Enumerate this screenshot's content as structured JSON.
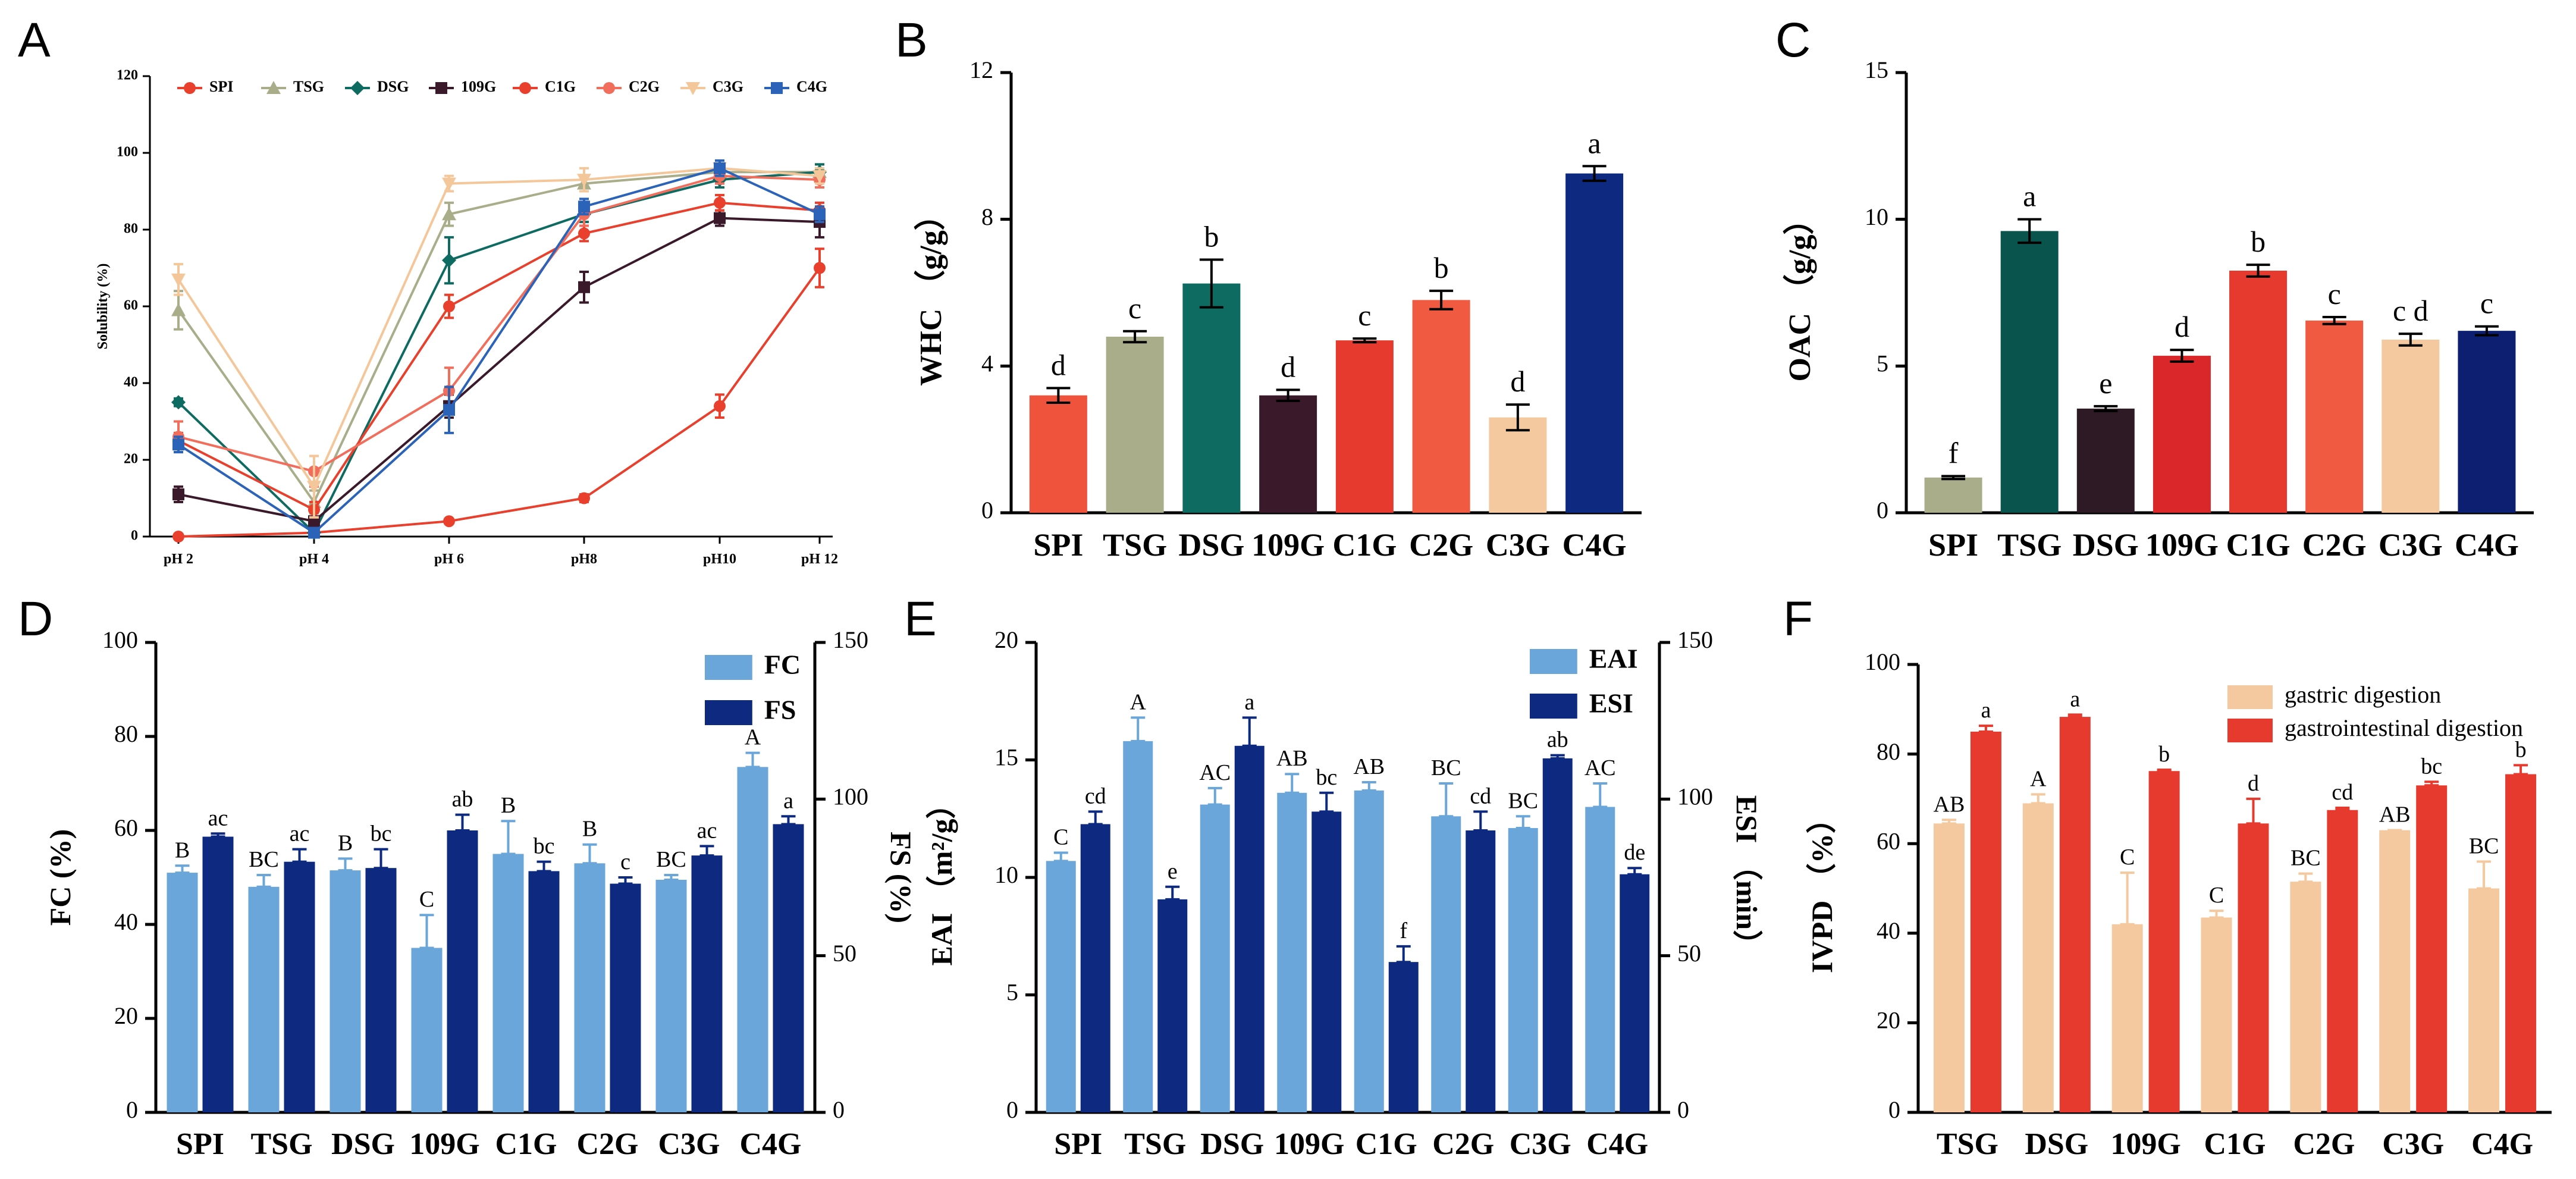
{
  "chart_data": [
    {
      "id": "A",
      "panel_label": "A",
      "type": "line",
      "title": "",
      "xlabel": "",
      "ylabel": "Solubility (%)",
      "categories": [
        "pH 2",
        "pH 4",
        "pH 6",
        "pH8",
        "pH10",
        "pH 12"
      ],
      "ylim": [
        0,
        120
      ],
      "yticks": [
        0,
        20,
        40,
        60,
        80,
        100,
        120
      ],
      "series": [
        {
          "name": "SPI",
          "color": "#e8402c",
          "marker": "circle",
          "values": [
            0,
            1,
            4,
            10,
            34,
            70
          ],
          "errors": [
            0,
            0.5,
            0.5,
            1,
            3,
            5
          ]
        },
        {
          "name": "TSG",
          "color": "#a9ad8a",
          "marker": "triangle",
          "values": [
            59,
            9,
            84,
            92,
            95,
            95
          ],
          "errors": [
            5,
            3,
            3,
            2,
            2,
            2
          ]
        },
        {
          "name": "DSG",
          "color": "#0d6b62",
          "marker": "diamond",
          "values": [
            35,
            1,
            72,
            84,
            93,
            95
          ],
          "errors": [
            1,
            0.5,
            6,
            2,
            2,
            2
          ]
        },
        {
          "name": "109G",
          "color": "#3a1a2a",
          "marker": "square",
          "values": [
            11,
            4,
            34,
            65,
            83,
            82
          ],
          "errors": [
            2,
            1,
            3,
            4,
            2,
            4
          ]
        },
        {
          "name": "C1G",
          "color": "#e8402c",
          "marker": "circle",
          "values": [
            25,
            7,
            60,
            79,
            87,
            85
          ],
          "errors": [
            2,
            2,
            3,
            2,
            2,
            2
          ]
        },
        {
          "name": "C2G",
          "color": "#f26e5c",
          "marker": "circle",
          "values": [
            26,
            17,
            38,
            84,
            94,
            93
          ],
          "errors": [
            4,
            4,
            6,
            3,
            2,
            2
          ]
        },
        {
          "name": "C3G",
          "color": "#f4c79a",
          "marker": "triangle-down",
          "values": [
            67,
            13,
            92,
            93,
            96,
            94
          ],
          "errors": [
            4,
            8,
            2,
            3,
            2,
            2
          ]
        },
        {
          "name": "C4G",
          "color": "#2b63b8",
          "marker": "square",
          "values": [
            24,
            1,
            33,
            86,
            96,
            84
          ],
          "errors": [
            2,
            0.5,
            6,
            2,
            2,
            2
          ]
        }
      ]
    },
    {
      "id": "B",
      "panel_label": "B",
      "type": "bar",
      "xlabel": "",
      "ylabel": "WHC （g/g）",
      "categories": [
        "SPI",
        "TSG",
        "DSG",
        "109G",
        "C1G",
        "C2G",
        "C3G",
        "C4G"
      ],
      "ylim": [
        0,
        12
      ],
      "yticks": [
        0,
        4,
        8,
        12
      ],
      "values": [
        3.2,
        4.8,
        6.25,
        3.2,
        4.7,
        5.8,
        2.6,
        9.25
      ],
      "errors": [
        0.2,
        0.15,
        0.65,
        0.15,
        0.05,
        0.25,
        0.35,
        0.2
      ],
      "letters": [
        "d",
        "c",
        "b",
        "d",
        "c",
        "b",
        "d",
        "a"
      ],
      "colors": [
        "#f0533b",
        "#a9ad8a",
        "#0d6b62",
        "#3a1a2a",
        "#e63a2e",
        "#f05a40",
        "#f4c99f",
        "#0d2a80"
      ]
    },
    {
      "id": "C",
      "panel_label": "C",
      "type": "bar",
      "xlabel": "",
      "ylabel": "OAC （g/g）",
      "categories": [
        "SPI",
        "TSG",
        "DSG",
        "109G",
        "C1G",
        "C2G",
        "C3G",
        "C4G"
      ],
      "ylim": [
        0,
        15
      ],
      "yticks": [
        0,
        5,
        10,
        15
      ],
      "values": [
        1.2,
        9.6,
        3.55,
        5.35,
        8.25,
        6.55,
        5.9,
        6.2
      ],
      "errors": [
        0.05,
        0.4,
        0.08,
        0.2,
        0.2,
        0.12,
        0.2,
        0.15
      ],
      "letters": [
        "f",
        "a",
        "e",
        "d",
        "b",
        "c",
        "c d",
        "c"
      ],
      "colors": [
        "#a9ad8a",
        "#0a544e",
        "#2e1a24",
        "#d9272a",
        "#e63a2e",
        "#f05a40",
        "#f4c99f",
        "#0d1f70"
      ]
    },
    {
      "id": "D",
      "panel_label": "D",
      "type": "bar",
      "categories": [
        "SPI",
        "TSG",
        "DSG",
        "109G",
        "C1G",
        "C2G",
        "C3G",
        "C4G"
      ],
      "ylabel": "FC (%)",
      "ylabel_right": "FS (%)",
      "ylim": [
        0,
        100
      ],
      "yticks": [
        0,
        20,
        40,
        60,
        80,
        100
      ],
      "ylim_right": [
        0,
        150
      ],
      "yticks_right": [
        0,
        50,
        100,
        150
      ],
      "series": [
        {
          "name": "FC",
          "color": "#6aa6d9",
          "axis": "left",
          "values": [
            51,
            48,
            51.5,
            35,
            55,
            53,
            49.5,
            73.5
          ],
          "errors": [
            1.5,
            2.5,
            2.5,
            7,
            7,
            4,
            1,
            3
          ],
          "letters": [
            "B",
            "BC",
            "B",
            "C",
            "B",
            "B",
            "BC",
            "A"
          ]
        },
        {
          "name": "FS",
          "color": "#0d2a80",
          "axis": "right",
          "values": [
            88,
            80,
            78,
            90,
            77,
            73,
            82,
            92
          ],
          "errors": [
            1,
            4,
            6,
            5,
            3,
            2,
            3,
            2.5
          ],
          "letters": [
            "ac",
            "ac",
            "bc",
            "ab",
            "bc",
            "c",
            "ac",
            "a"
          ]
        }
      ],
      "legend_position": "top-right"
    },
    {
      "id": "E",
      "panel_label": "E",
      "type": "bar",
      "categories": [
        "SPI",
        "TSG",
        "DSG",
        "109G",
        "C1G",
        "C2G",
        "C3G",
        "C4G"
      ],
      "ylabel": "EAI （m²/g）",
      "ylabel_right": "ESI （min）",
      "ylim": [
        0,
        20
      ],
      "yticks": [
        0,
        5,
        10,
        15,
        20
      ],
      "ylim_right": [
        0,
        150
      ],
      "yticks_right": [
        0,
        50,
        100,
        150
      ],
      "series": [
        {
          "name": "EAI",
          "color": "#6aa6d9",
          "axis": "left",
          "values": [
            10.7,
            15.8,
            13.1,
            13.6,
            13.7,
            12.6,
            12.1,
            13
          ],
          "errors": [
            0.35,
            1,
            0.7,
            0.8,
            0.35,
            1.4,
            0.5,
            1
          ],
          "letters": [
            "C",
            "A",
            "AC",
            "AB",
            "AB",
            "BC",
            "BC",
            "AC"
          ]
        },
        {
          "name": "ESI",
          "color": "#0d2a80",
          "axis": "right",
          "values": [
            92,
            68,
            117,
            96,
            48,
            90,
            113,
            76
          ],
          "errors": [
            4,
            4,
            9,
            6,
            5,
            6,
            1,
            2
          ],
          "letters": [
            "cd",
            "e",
            "a",
            "bc",
            "f",
            "cd",
            "ab",
            "de"
          ]
        }
      ],
      "legend_position": "top-right"
    },
    {
      "id": "F",
      "panel_label": "F",
      "type": "bar",
      "categories": [
        "TSG",
        "DSG",
        "109G",
        "C1G",
        "C2G",
        "C3G",
        "C4G"
      ],
      "ylabel": "IVPD （%）",
      "ylim": [
        0,
        100
      ],
      "yticks": [
        0,
        20,
        40,
        60,
        80,
        100
      ],
      "series": [
        {
          "name": "gastric digestion",
          "color": "#f4c99f",
          "values": [
            64.5,
            69,
            42,
            43.5,
            51.5,
            63,
            50
          ],
          "errors": [
            0.8,
            2,
            11.5,
            1.5,
            1.8,
            0,
            6
          ],
          "letters": [
            "AB",
            "A",
            "C",
            "C",
            "BC",
            "AB",
            "BC"
          ]
        },
        {
          "name": "gastrointestinal digestion",
          "color": "#e63a2e",
          "values": [
            85,
            88.3,
            76.2,
            64.5,
            67.5,
            73,
            75.5
          ],
          "errors": [
            1.3,
            0.5,
            0.3,
            5.5,
            0.5,
            0.8,
            2
          ],
          "letters": [
            "a",
            "a",
            "b",
            "d",
            "cd",
            "bc",
            "b"
          ]
        }
      ],
      "legend_position": "top-right"
    }
  ]
}
